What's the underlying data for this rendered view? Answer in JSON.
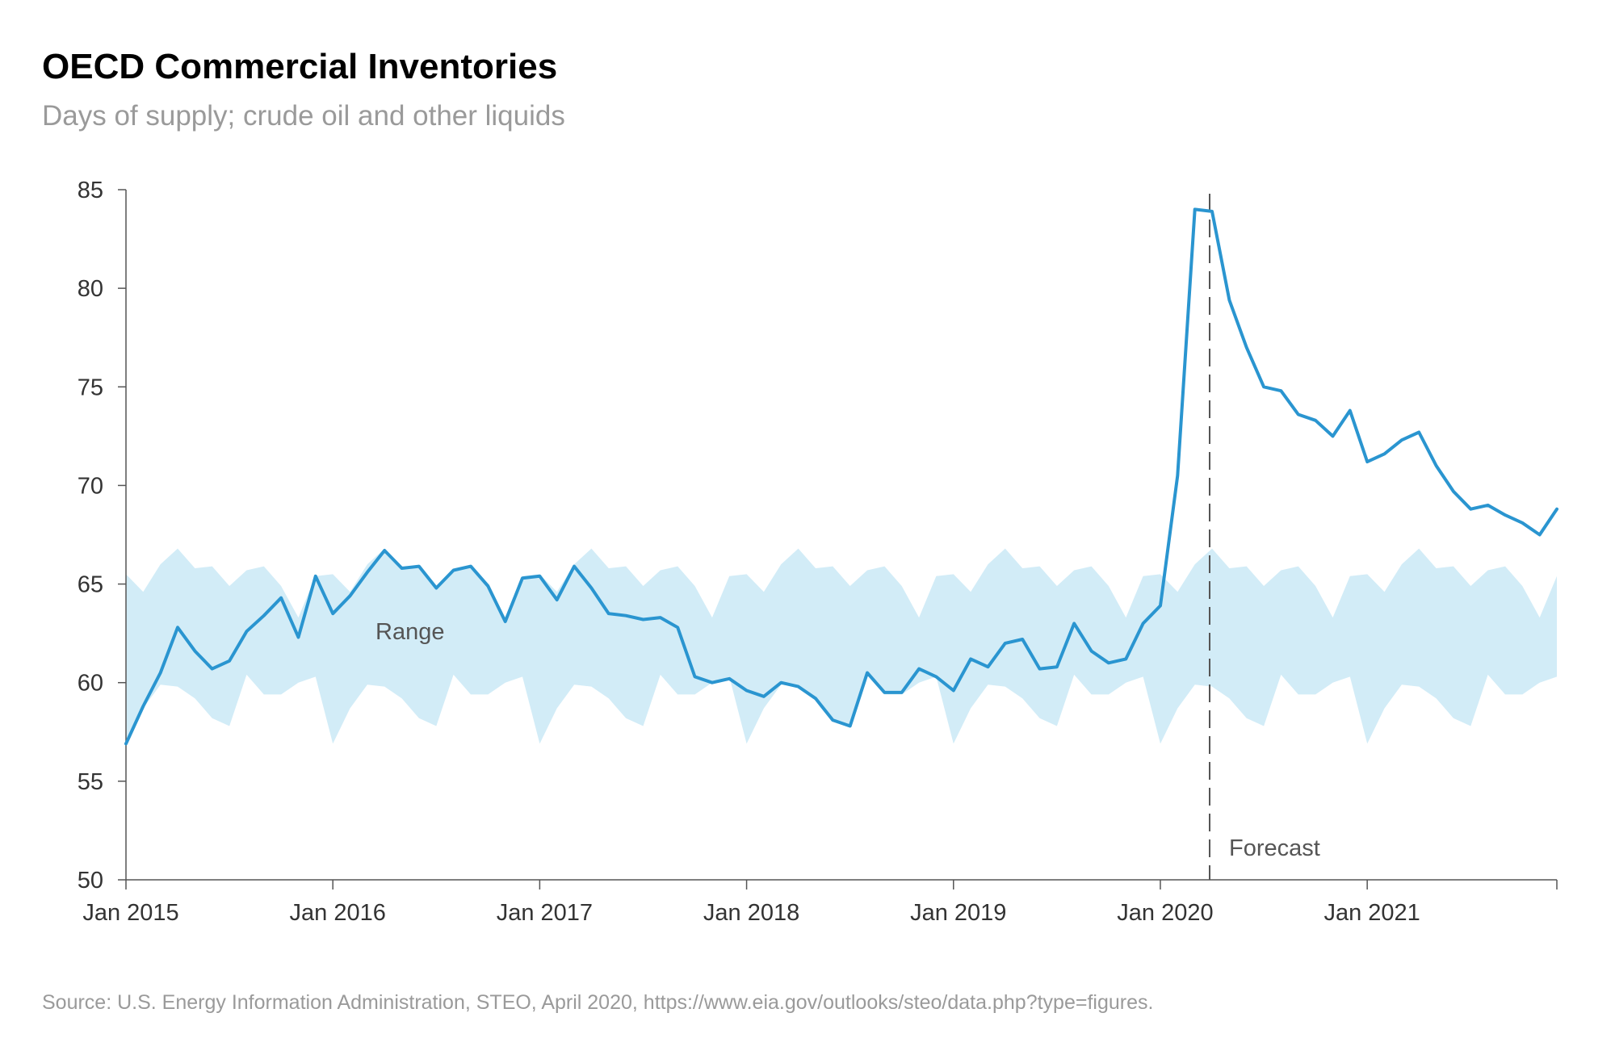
{
  "title": "OECD Commercial Inventories",
  "subtitle": "Days of supply; crude oil and other liquids",
  "source": "Source: U.S. Energy Information Administration, STEO, April 2020, https://www.eia.gov/outlooks/steo/data.php?type=figures.",
  "chart_data": {
    "type": "line",
    "title": "OECD Commercial Inventories",
    "subtitle": "Days of supply; crude oil and other liquids",
    "xlabel": "",
    "ylabel": "",
    "ylim": [
      50,
      85
    ],
    "yticks": [
      "50",
      "55",
      "60",
      "65",
      "70",
      "75",
      "80",
      "85"
    ],
    "xticks": [
      "Jan 2015",
      "Jan 2016",
      "Jan 2017",
      "Jan 2018",
      "Jan 2019",
      "Jan 2020",
      "Jan 2021"
    ],
    "x_start": "Jan 2015",
    "x_end": "Dec 2021",
    "grid": false,
    "legend": "none",
    "colors": {
      "line": "#2a95d0",
      "band": "#d2ecf7",
      "axis": "#555555",
      "forecast_line": "#555555"
    },
    "series": [
      {
        "values": [
          56.9,
          58.8,
          60.5,
          62.8,
          61.6,
          60.7,
          61.1,
          62.6,
          63.4,
          64.3,
          62.3,
          65.4,
          63.5,
          64.4,
          65.6,
          66.7,
          65.8,
          65.9,
          64.8,
          65.7,
          65.9,
          64.9,
          63.1,
          65.3,
          65.4,
          64.2,
          65.9,
          64.8,
          63.5,
          63.4,
          63.2,
          63.3,
          62.8,
          60.3,
          60.0,
          60.2,
          59.6,
          59.3,
          60.0,
          59.8,
          59.2,
          58.1,
          57.8,
          60.5,
          59.5,
          59.5,
          60.7,
          60.3,
          59.6,
          61.2,
          60.8,
          62.0,
          62.2,
          60.7,
          60.8,
          63.0,
          61.6,
          61.0,
          61.2,
          63.0,
          63.9,
          70.5,
          84.0,
          83.9,
          79.4,
          77.0,
          75.0,
          74.8,
          73.6,
          73.3,
          72.5,
          73.8,
          71.2,
          71.6,
          72.3,
          72.7,
          71.0,
          69.7,
          68.8,
          69.0,
          68.5,
          68.1,
          67.5,
          68.8
        ]
      },
      {
        "name": "Range",
        "type": "area",
        "upper": [
          65.5,
          64.6,
          66.0,
          66.8,
          65.8,
          65.9,
          64.9,
          65.7,
          65.9,
          64.9,
          63.3,
          65.4
        ],
        "lower": [
          56.9,
          58.7,
          59.9,
          59.8,
          59.2,
          58.2,
          57.8,
          60.4,
          59.4,
          59.4,
          60.0,
          60.3
        ],
        "repeats_yearly": true
      }
    ],
    "forecast_start": "Apr 2020",
    "annotations": [
      "Range",
      "Forecast"
    ]
  }
}
